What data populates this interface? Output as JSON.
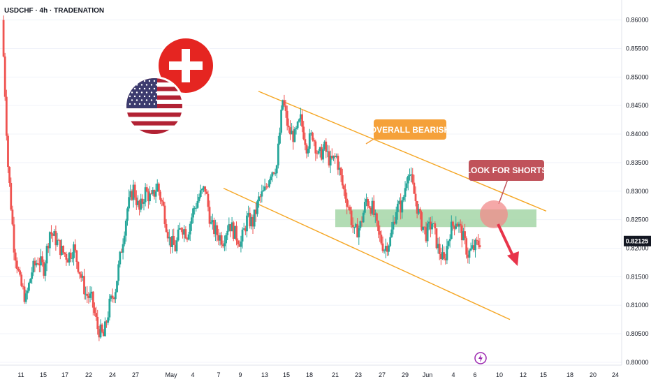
{
  "header": {
    "title": "USDCHF · 4h · TRADENATION"
  },
  "colors": {
    "up": "#26a69a",
    "down": "#ef5350",
    "channel": "#f5a623",
    "zone": "#a5d6a7",
    "bearish_label": "#f5a13a",
    "shorts_label": "#c0525a",
    "arrow": "#e8344a",
    "price_tag": "#131722"
  },
  "icons": {
    "us_flag": "us-flag-icon",
    "swiss_flag": "swiss-flag-icon",
    "lightning": "lightning-icon"
  },
  "chart_data": {
    "type": "candlestick",
    "symbol": "USDCHF",
    "timeframe": "4h",
    "ylim": [
      0.7995,
      0.8635
    ],
    "y_ticks": [
      "0.86000",
      "0.85500",
      "0.85000",
      "0.84500",
      "0.84000",
      "0.83500",
      "0.83000",
      "0.82500",
      "0.82000",
      "0.81500",
      "0.81000",
      "0.80500",
      "0.80000"
    ],
    "x_ticks": [
      "11",
      "15",
      "17",
      "22",
      "24",
      "27",
      "May",
      "4",
      "7",
      "9",
      "13",
      "15",
      "18",
      "21",
      "23",
      "27",
      "29",
      "Jun",
      "4",
      "6",
      "10",
      "12",
      "15",
      "18",
      "20",
      "24"
    ],
    "last_price": "0.82125",
    "trend": [
      [
        0.86,
        0.8345
      ],
      [
        0.8345,
        0.8205
      ],
      [
        0.8205,
        0.814
      ],
      [
        0.814,
        0.811
      ],
      [
        0.811,
        0.816
      ],
      [
        0.816,
        0.818
      ],
      [
        0.818,
        0.8165
      ],
      [
        0.8165,
        0.823
      ],
      [
        0.823,
        0.8215
      ],
      [
        0.8215,
        0.8195
      ],
      [
        0.8195,
        0.8185
      ],
      [
        0.8185,
        0.82
      ],
      [
        0.82,
        0.816
      ],
      [
        0.816,
        0.812
      ],
      [
        0.812,
        0.811
      ],
      [
        0.811,
        0.806
      ],
      [
        0.806,
        0.8045
      ],
      [
        0.8045,
        0.81
      ],
      [
        0.81,
        0.813
      ],
      [
        0.813,
        0.82
      ],
      [
        0.82,
        0.827
      ],
      [
        0.827,
        0.8305
      ],
      [
        0.8305,
        0.8265
      ],
      [
        0.8265,
        0.83
      ],
      [
        0.83,
        0.8285
      ],
      [
        0.8285,
        0.831
      ],
      [
        0.831,
        0.827
      ],
      [
        0.827,
        0.8215
      ],
      [
        0.8215,
        0.82
      ],
      [
        0.82,
        0.824
      ],
      [
        0.824,
        0.8225
      ],
      [
        0.8225,
        0.8265
      ],
      [
        0.8265,
        0.829
      ],
      [
        0.829,
        0.8305
      ],
      [
        0.8305,
        0.824
      ],
      [
        0.824,
        0.8225
      ],
      [
        0.8225,
        0.8215
      ],
      [
        0.8215,
        0.8245
      ],
      [
        0.8245,
        0.8225
      ],
      [
        0.8225,
        0.821
      ],
      [
        0.821,
        0.825
      ],
      [
        0.825,
        0.8245
      ],
      [
        0.8245,
        0.8285
      ],
      [
        0.8285,
        0.83
      ],
      [
        0.83,
        0.8335
      ],
      [
        0.8335,
        0.8345
      ],
      [
        0.8345,
        0.846
      ],
      [
        0.846,
        0.8405
      ],
      [
        0.8405,
        0.8395
      ],
      [
        0.8395,
        0.8425
      ],
      [
        0.8425,
        0.838
      ],
      [
        0.838,
        0.84
      ],
      [
        0.84,
        0.836
      ],
      [
        0.836,
        0.8375
      ],
      [
        0.8375,
        0.835
      ],
      [
        0.835,
        0.836
      ],
      [
        0.836,
        0.831
      ],
      [
        0.831,
        0.8275
      ],
      [
        0.8275,
        0.8225
      ],
      [
        0.8225,
        0.824
      ],
      [
        0.824,
        0.8285
      ],
      [
        0.8285,
        0.827
      ],
      [
        0.827,
        0.8225
      ],
      [
        0.8225,
        0.82
      ],
      [
        0.82,
        0.8215
      ],
      [
        0.8215,
        0.827
      ],
      [
        0.827,
        0.8275
      ],
      [
        0.8275,
        0.834
      ],
      [
        0.834,
        0.8295
      ],
      [
        0.8295,
        0.825
      ],
      [
        0.825,
        0.8225
      ],
      [
        0.8225,
        0.8245
      ],
      [
        0.8245,
        0.82
      ],
      [
        0.82,
        0.8175
      ],
      [
        0.8175,
        0.823
      ],
      [
        0.823,
        0.825
      ],
      [
        0.825,
        0.8225
      ],
      [
        0.8225,
        0.819
      ],
      [
        0.819,
        0.82
      ],
      [
        0.82,
        0.8212
      ]
    ],
    "channel_upper": [
      [
        0.8475,
        0
      ],
      [
        0.8265,
        1
      ]
    ],
    "channel_lower": [
      [
        0.8305,
        0
      ],
      [
        0.8075,
        1
      ]
    ],
    "zone": [
      0.8237,
      0.8268
    ],
    "annotations": [
      {
        "text": "OVERALL BEARISH"
      },
      {
        "text": "LOOK FOR SHORTS"
      }
    ]
  }
}
